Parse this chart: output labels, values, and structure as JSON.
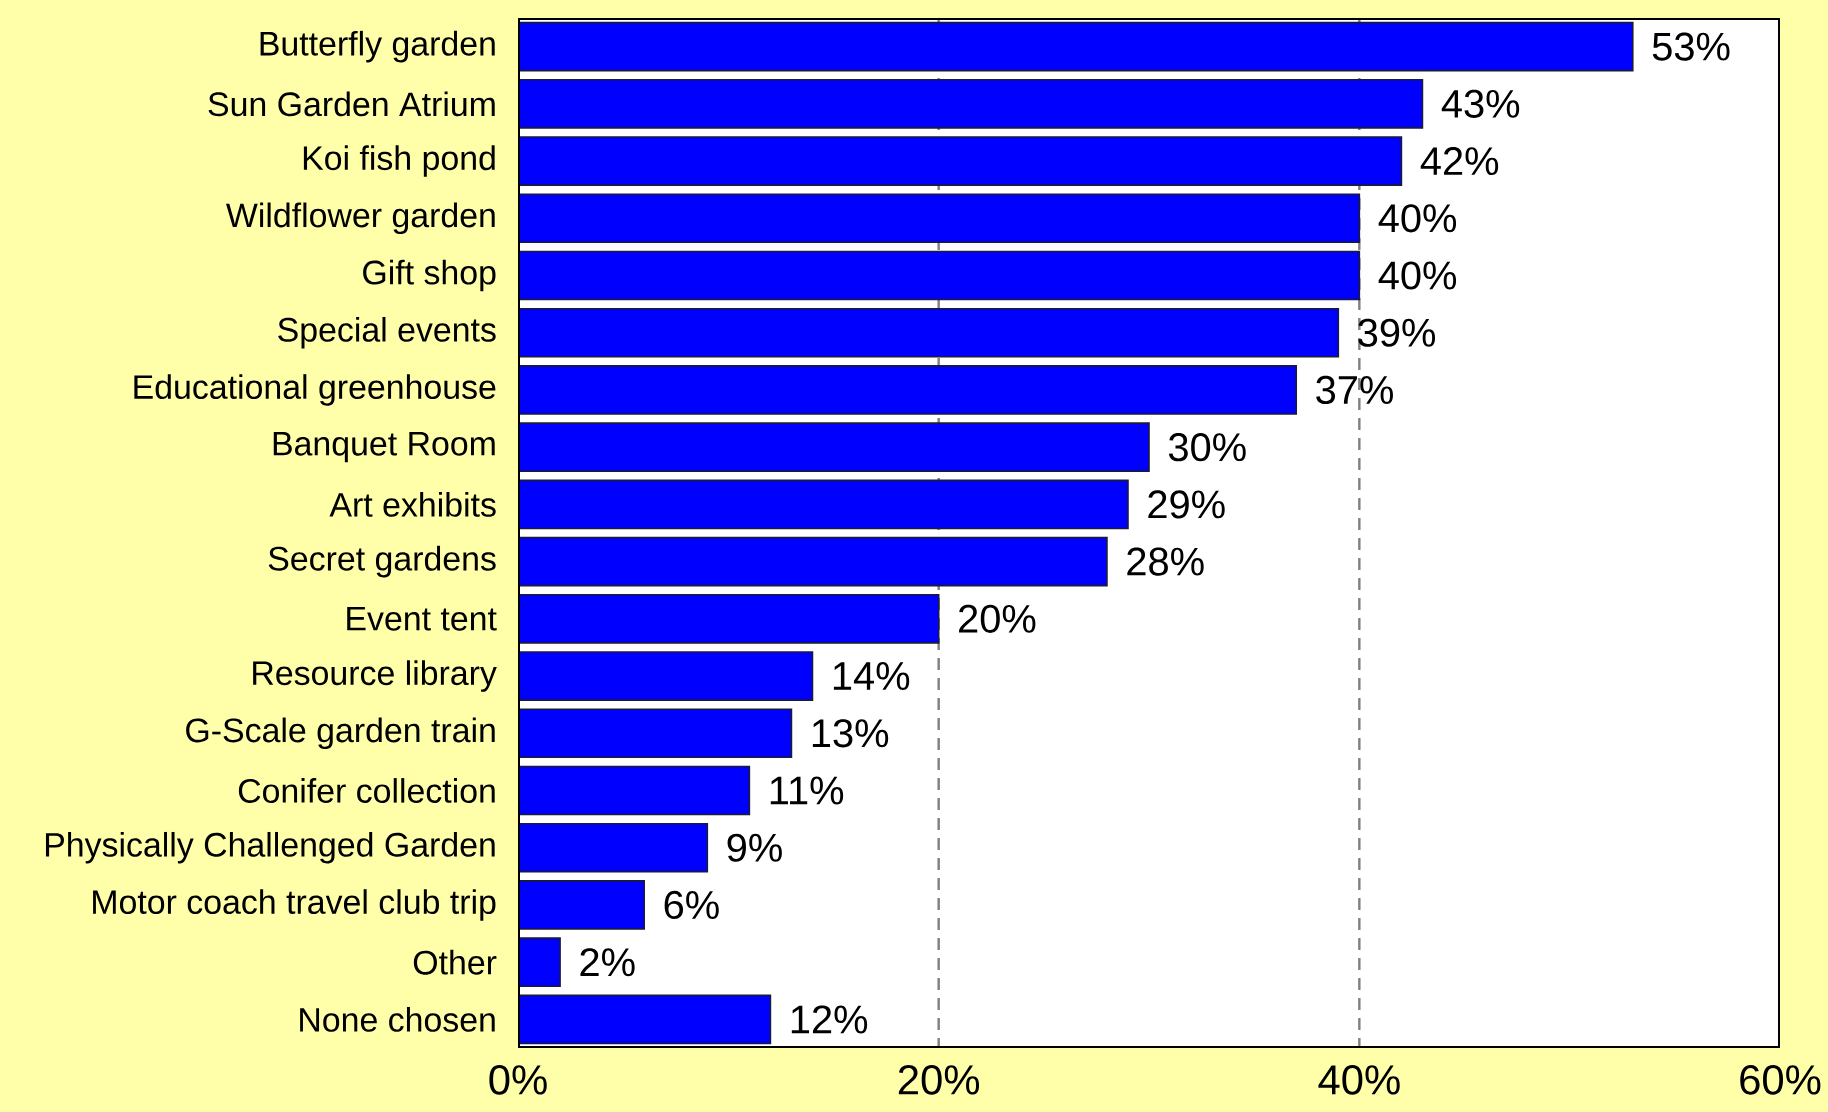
{
  "chart_data": {
    "type": "bar",
    "orientation": "horizontal",
    "categories": [
      "Butterfly garden",
      "Sun Garden Atrium",
      "Koi fish pond",
      "Wildflower garden",
      "Gift shop",
      "Special events",
      "Educational greenhouse",
      "Banquet Room",
      "Art exhibits",
      "Secret gardens",
      "Event tent",
      "Resource library",
      "G-Scale garden train",
      "Conifer collection",
      "Physically Challenged Garden",
      "Motor coach travel club trip",
      "Other",
      "None chosen"
    ],
    "values": [
      53,
      43,
      42,
      40,
      40,
      39,
      37,
      30,
      29,
      28,
      20,
      14,
      13,
      11,
      9,
      6,
      2,
      12
    ],
    "value_labels": [
      "53%",
      "43%",
      "42%",
      "40%",
      "40%",
      "39%",
      "37%",
      "30%",
      "29%",
      "28%",
      "20%",
      "14%",
      "13%",
      "11%",
      "9%",
      "6%",
      "2%",
      "12%"
    ],
    "color": "#0000ff",
    "xlim": [
      0,
      60
    ],
    "xticks": [
      {
        "value": 0,
        "label": "0%"
      },
      {
        "value": 20,
        "label": "20%"
      },
      {
        "value": 40,
        "label": "40%"
      },
      {
        "value": 60,
        "label": "60%"
      }
    ],
    "grid": "x"
  }
}
